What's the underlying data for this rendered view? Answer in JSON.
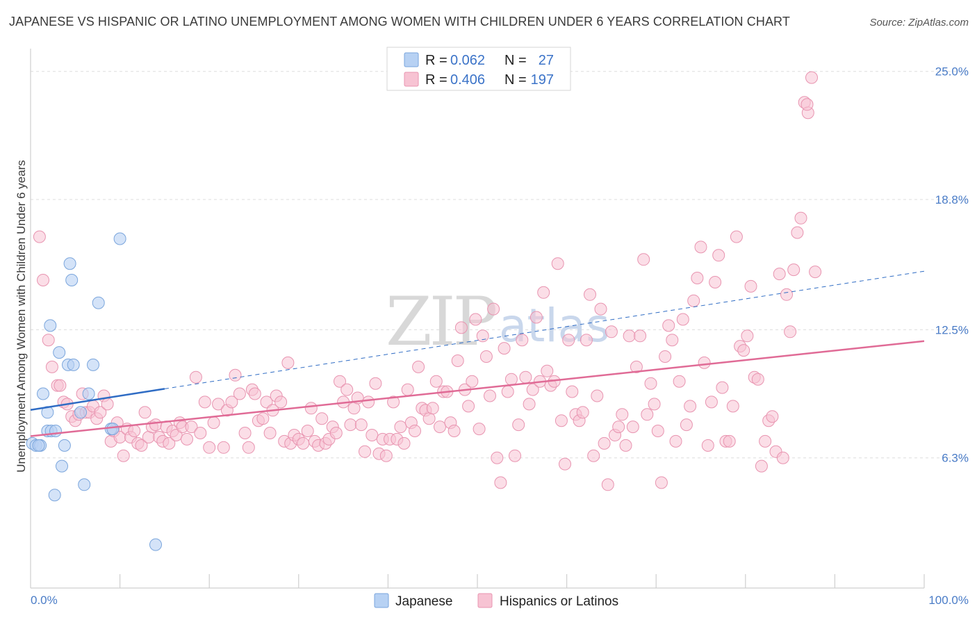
{
  "title": "JAPANESE VS HISPANIC OR LATINO UNEMPLOYMENT AMONG WOMEN WITH CHILDREN UNDER 6 YEARS CORRELATION CHART",
  "source": "Source: ZipAtlas.com",
  "watermark": {
    "zip": "ZIP",
    "atlas": "atlas"
  },
  "colors": {
    "japanese_fill": "#b7d1f3",
    "japanese_stroke": "#7aa5dc",
    "japanese_line": "#2f6cc4",
    "hispanic_fill": "#f7c3d3",
    "hispanic_stroke": "#e894b0",
    "hispanic_line": "#e06b96",
    "tick_text": "#4a7cc7",
    "grid": "#dddddd"
  },
  "legend": {
    "rows": [
      {
        "r_label": "R =",
        "r_value": "0.062",
        "n_label": "N =",
        "n_value": "27"
      },
      {
        "r_label": "R =",
        "r_value": "0.406",
        "n_label": "N =",
        "n_value": "197"
      }
    ]
  },
  "chart_data": {
    "type": "scatter",
    "title": "JAPANESE VS HISPANIC OR LATINO UNEMPLOYMENT AMONG WOMEN WITH CHILDREN UNDER 6 YEARS CORRELATION CHART",
    "xlabel": "",
    "ylabel": "Unemployment Among Women with Children Under 6 years",
    "xlim": [
      0,
      100
    ],
    "ylim": [
      0,
      26.1
    ],
    "x_tick_labels": [
      "0.0%",
      "100.0%"
    ],
    "y_ticks": [
      6.3,
      12.5,
      18.8,
      25.0
    ],
    "y_tick_labels": [
      "6.3%",
      "12.5%",
      "18.8%",
      "25.0%"
    ],
    "grid": true,
    "legend_position": "top-center",
    "series": [
      {
        "name": "Japanese",
        "r": 0.062,
        "n": 27,
        "trend": {
          "x0": 0,
          "y0": 8.62,
          "x1": 15,
          "y1": 9.64,
          "dashed_to_x": 100,
          "dashed_to_y": 15.33
        },
        "points": [
          [
            0.2,
            7.0
          ],
          [
            0.6,
            6.9
          ],
          [
            1.1,
            6.9
          ],
          [
            1.4,
            9.4
          ],
          [
            1.9,
            7.6
          ],
          [
            1.9,
            8.5
          ],
          [
            2.2,
            12.7
          ],
          [
            2.3,
            7.6
          ],
          [
            2.8,
            7.6
          ],
          [
            2.7,
            4.5
          ],
          [
            3.2,
            11.4
          ],
          [
            3.5,
            5.9
          ],
          [
            3.8,
            6.9
          ],
          [
            4.2,
            10.8
          ],
          [
            4.4,
            15.7
          ],
          [
            4.6,
            14.9
          ],
          [
            4.8,
            10.8
          ],
          [
            5.6,
            8.5
          ],
          [
            6.0,
            5.0
          ],
          [
            6.5,
            9.4
          ],
          [
            7.0,
            10.8
          ],
          [
            7.6,
            13.8
          ],
          [
            9.0,
            7.7
          ],
          [
            9.2,
            7.7
          ],
          [
            10.0,
            16.9
          ],
          [
            14.0,
            2.1
          ],
          [
            0.9,
            6.9
          ]
        ]
      },
      {
        "name": "Hispanics or Latinos",
        "r": 0.406,
        "n": 197,
        "trend": {
          "x0": 0,
          "y0": 7.35,
          "x1": 100,
          "y1": 11.95
        },
        "points": [
          [
            1.0,
            17.0
          ],
          [
            1.4,
            14.9
          ],
          [
            2.0,
            12.0
          ],
          [
            2.4,
            10.7
          ],
          [
            3.0,
            9.8
          ],
          [
            3.3,
            9.8
          ],
          [
            3.7,
            9.0
          ],
          [
            4.1,
            8.9
          ],
          [
            4.6,
            8.3
          ],
          [
            5.0,
            8.1
          ],
          [
            5.4,
            8.4
          ],
          [
            5.8,
            9.4
          ],
          [
            6.2,
            8.5
          ],
          [
            6.6,
            8.5
          ],
          [
            7.0,
            8.8
          ],
          [
            7.4,
            8.2
          ],
          [
            7.8,
            8.5
          ],
          [
            8.2,
            9.3
          ],
          [
            8.6,
            8.9
          ],
          [
            9.0,
            7.1
          ],
          [
            9.3,
            7.6
          ],
          [
            9.7,
            8.0
          ],
          [
            10.0,
            7.3
          ],
          [
            10.4,
            6.4
          ],
          [
            10.8,
            7.7
          ],
          [
            11.2,
            7.3
          ],
          [
            11.6,
            7.6
          ],
          [
            12.0,
            7.0
          ],
          [
            12.4,
            6.9
          ],
          [
            12.8,
            8.5
          ],
          [
            13.2,
            7.3
          ],
          [
            13.6,
            7.8
          ],
          [
            14.0,
            7.9
          ],
          [
            14.4,
            7.3
          ],
          [
            14.8,
            7.1
          ],
          [
            15.2,
            7.8
          ],
          [
            15.5,
            7.0
          ],
          [
            15.9,
            7.6
          ],
          [
            16.3,
            7.4
          ],
          [
            16.7,
            8.0
          ],
          [
            17.0,
            7.8
          ],
          [
            17.5,
            7.2
          ],
          [
            18.0,
            7.8
          ],
          [
            18.5,
            10.2
          ],
          [
            19.0,
            7.5
          ],
          [
            19.5,
            9.0
          ],
          [
            20.0,
            6.8
          ],
          [
            20.5,
            8.0
          ],
          [
            21.0,
            8.9
          ],
          [
            21.6,
            6.8
          ],
          [
            22.0,
            8.6
          ],
          [
            22.5,
            9.0
          ],
          [
            22.9,
            10.3
          ],
          [
            23.4,
            9.4
          ],
          [
            24.0,
            7.5
          ],
          [
            24.4,
            6.8
          ],
          [
            24.8,
            9.6
          ],
          [
            25.1,
            9.4
          ],
          [
            25.5,
            8.1
          ],
          [
            26.0,
            8.2
          ],
          [
            26.4,
            9.0
          ],
          [
            26.8,
            7.5
          ],
          [
            27.1,
            8.6
          ],
          [
            27.5,
            9.3
          ],
          [
            28.0,
            9.0
          ],
          [
            28.4,
            7.1
          ],
          [
            28.8,
            10.9
          ],
          [
            29.1,
            7.0
          ],
          [
            29.5,
            7.4
          ],
          [
            30.0,
            7.2
          ],
          [
            30.5,
            7.0
          ],
          [
            31.0,
            7.6
          ],
          [
            31.4,
            8.7
          ],
          [
            31.8,
            7.1
          ],
          [
            32.2,
            6.9
          ],
          [
            32.6,
            8.2
          ],
          [
            33.0,
            7.0
          ],
          [
            33.4,
            7.2
          ],
          [
            33.8,
            7.8
          ],
          [
            34.2,
            7.5
          ],
          [
            34.6,
            10.0
          ],
          [
            35.0,
            9.0
          ],
          [
            35.4,
            9.6
          ],
          [
            35.8,
            7.9
          ],
          [
            36.2,
            8.7
          ],
          [
            36.6,
            9.2
          ],
          [
            37.0,
            7.9
          ],
          [
            37.4,
            6.6
          ],
          [
            37.8,
            9.0
          ],
          [
            38.2,
            7.4
          ],
          [
            38.6,
            9.9
          ],
          [
            39.0,
            6.5
          ],
          [
            39.4,
            7.2
          ],
          [
            39.8,
            6.4
          ],
          [
            40.2,
            7.2
          ],
          [
            40.6,
            9.0
          ],
          [
            41.0,
            7.2
          ],
          [
            41.4,
            7.8
          ],
          [
            41.8,
            7.0
          ],
          [
            42.2,
            9.6
          ],
          [
            42.6,
            8.0
          ],
          [
            43.0,
            7.6
          ],
          [
            43.4,
            10.7
          ],
          [
            43.8,
            8.7
          ],
          [
            44.2,
            8.6
          ],
          [
            44.6,
            8.2
          ],
          [
            45.0,
            8.7
          ],
          [
            45.4,
            10.0
          ],
          [
            45.8,
            7.8
          ],
          [
            46.2,
            9.5
          ],
          [
            46.6,
            9.5
          ],
          [
            47.0,
            8.0
          ],
          [
            47.4,
            7.6
          ],
          [
            47.8,
            11.0
          ],
          [
            48.2,
            12.6
          ],
          [
            48.6,
            9.6
          ],
          [
            49.0,
            8.8
          ],
          [
            49.4,
            10.0
          ],
          [
            49.8,
            13.0
          ],
          [
            50.2,
            7.7
          ],
          [
            50.6,
            12.2
          ],
          [
            51.0,
            11.2
          ],
          [
            51.4,
            9.3
          ],
          [
            51.8,
            13.5
          ],
          [
            52.2,
            6.3
          ],
          [
            52.6,
            5.1
          ],
          [
            53.0,
            11.6
          ],
          [
            53.4,
            9.5
          ],
          [
            53.8,
            10.1
          ],
          [
            54.2,
            6.4
          ],
          [
            54.6,
            7.9
          ],
          [
            55.0,
            12.0
          ],
          [
            55.4,
            10.2
          ],
          [
            55.8,
            8.9
          ],
          [
            56.2,
            9.6
          ],
          [
            56.6,
            13.1
          ],
          [
            57.0,
            10.0
          ],
          [
            57.4,
            14.3
          ],
          [
            57.8,
            10.5
          ],
          [
            58.2,
            9.8
          ],
          [
            58.6,
            10.0
          ],
          [
            59.0,
            15.7
          ],
          [
            59.4,
            8.1
          ],
          [
            59.8,
            6.0
          ],
          [
            60.2,
            12.0
          ],
          [
            60.6,
            9.5
          ],
          [
            61.0,
            8.4
          ],
          [
            61.4,
            8.1
          ],
          [
            61.8,
            8.5
          ],
          [
            62.2,
            12.0
          ],
          [
            62.6,
            14.2
          ],
          [
            63.0,
            6.4
          ],
          [
            63.4,
            9.3
          ],
          [
            63.8,
            13.5
          ],
          [
            64.2,
            7.0
          ],
          [
            64.6,
            5.0
          ],
          [
            65.0,
            12.4
          ],
          [
            65.4,
            7.4
          ],
          [
            65.8,
            7.8
          ],
          [
            66.2,
            8.4
          ],
          [
            66.6,
            6.9
          ],
          [
            67.0,
            12.2
          ],
          [
            67.4,
            7.8
          ],
          [
            67.8,
            10.7
          ],
          [
            68.2,
            12.2
          ],
          [
            68.6,
            15.9
          ],
          [
            69.0,
            8.4
          ],
          [
            69.4,
            9.9
          ],
          [
            69.8,
            8.9
          ],
          [
            70.2,
            7.6
          ],
          [
            70.6,
            5.1
          ],
          [
            71.0,
            11.2
          ],
          [
            71.4,
            12.7
          ],
          [
            71.8,
            12.0
          ],
          [
            72.2,
            7.1
          ],
          [
            72.6,
            10.0
          ],
          [
            73.0,
            13.0
          ],
          [
            73.4,
            7.9
          ],
          [
            73.8,
            8.8
          ],
          [
            74.2,
            13.9
          ],
          [
            74.6,
            15.0
          ],
          [
            75.0,
            16.5
          ],
          [
            75.4,
            10.9
          ],
          [
            75.8,
            6.9
          ],
          [
            76.2,
            9.0
          ],
          [
            76.6,
            14.8
          ],
          [
            77.0,
            16.1
          ],
          [
            77.4,
            9.7
          ],
          [
            77.8,
            7.1
          ],
          [
            78.2,
            7.1
          ],
          [
            78.6,
            8.8
          ],
          [
            79.0,
            17.0
          ],
          [
            79.4,
            11.7
          ],
          [
            79.8,
            11.5
          ],
          [
            80.2,
            12.2
          ],
          [
            80.6,
            14.6
          ],
          [
            81.0,
            10.2
          ],
          [
            81.4,
            10.1
          ],
          [
            81.8,
            5.9
          ],
          [
            82.2,
            7.1
          ],
          [
            82.6,
            8.1
          ],
          [
            83.0,
            8.3
          ],
          [
            83.4,
            6.6
          ],
          [
            83.8,
            15.2
          ],
          [
            84.2,
            6.3
          ],
          [
            84.6,
            14.2
          ],
          [
            85.0,
            12.4
          ],
          [
            85.4,
            15.4
          ],
          [
            85.8,
            17.2
          ],
          [
            86.2,
            17.9
          ],
          [
            86.6,
            23.5
          ],
          [
            87.0,
            23.0
          ],
          [
            87.4,
            24.7
          ],
          [
            87.8,
            15.3
          ],
          [
            86.9,
            23.4
          ]
        ]
      }
    ]
  },
  "bottom_legend": [
    "Japanese",
    "Hispanics or Latinos"
  ]
}
